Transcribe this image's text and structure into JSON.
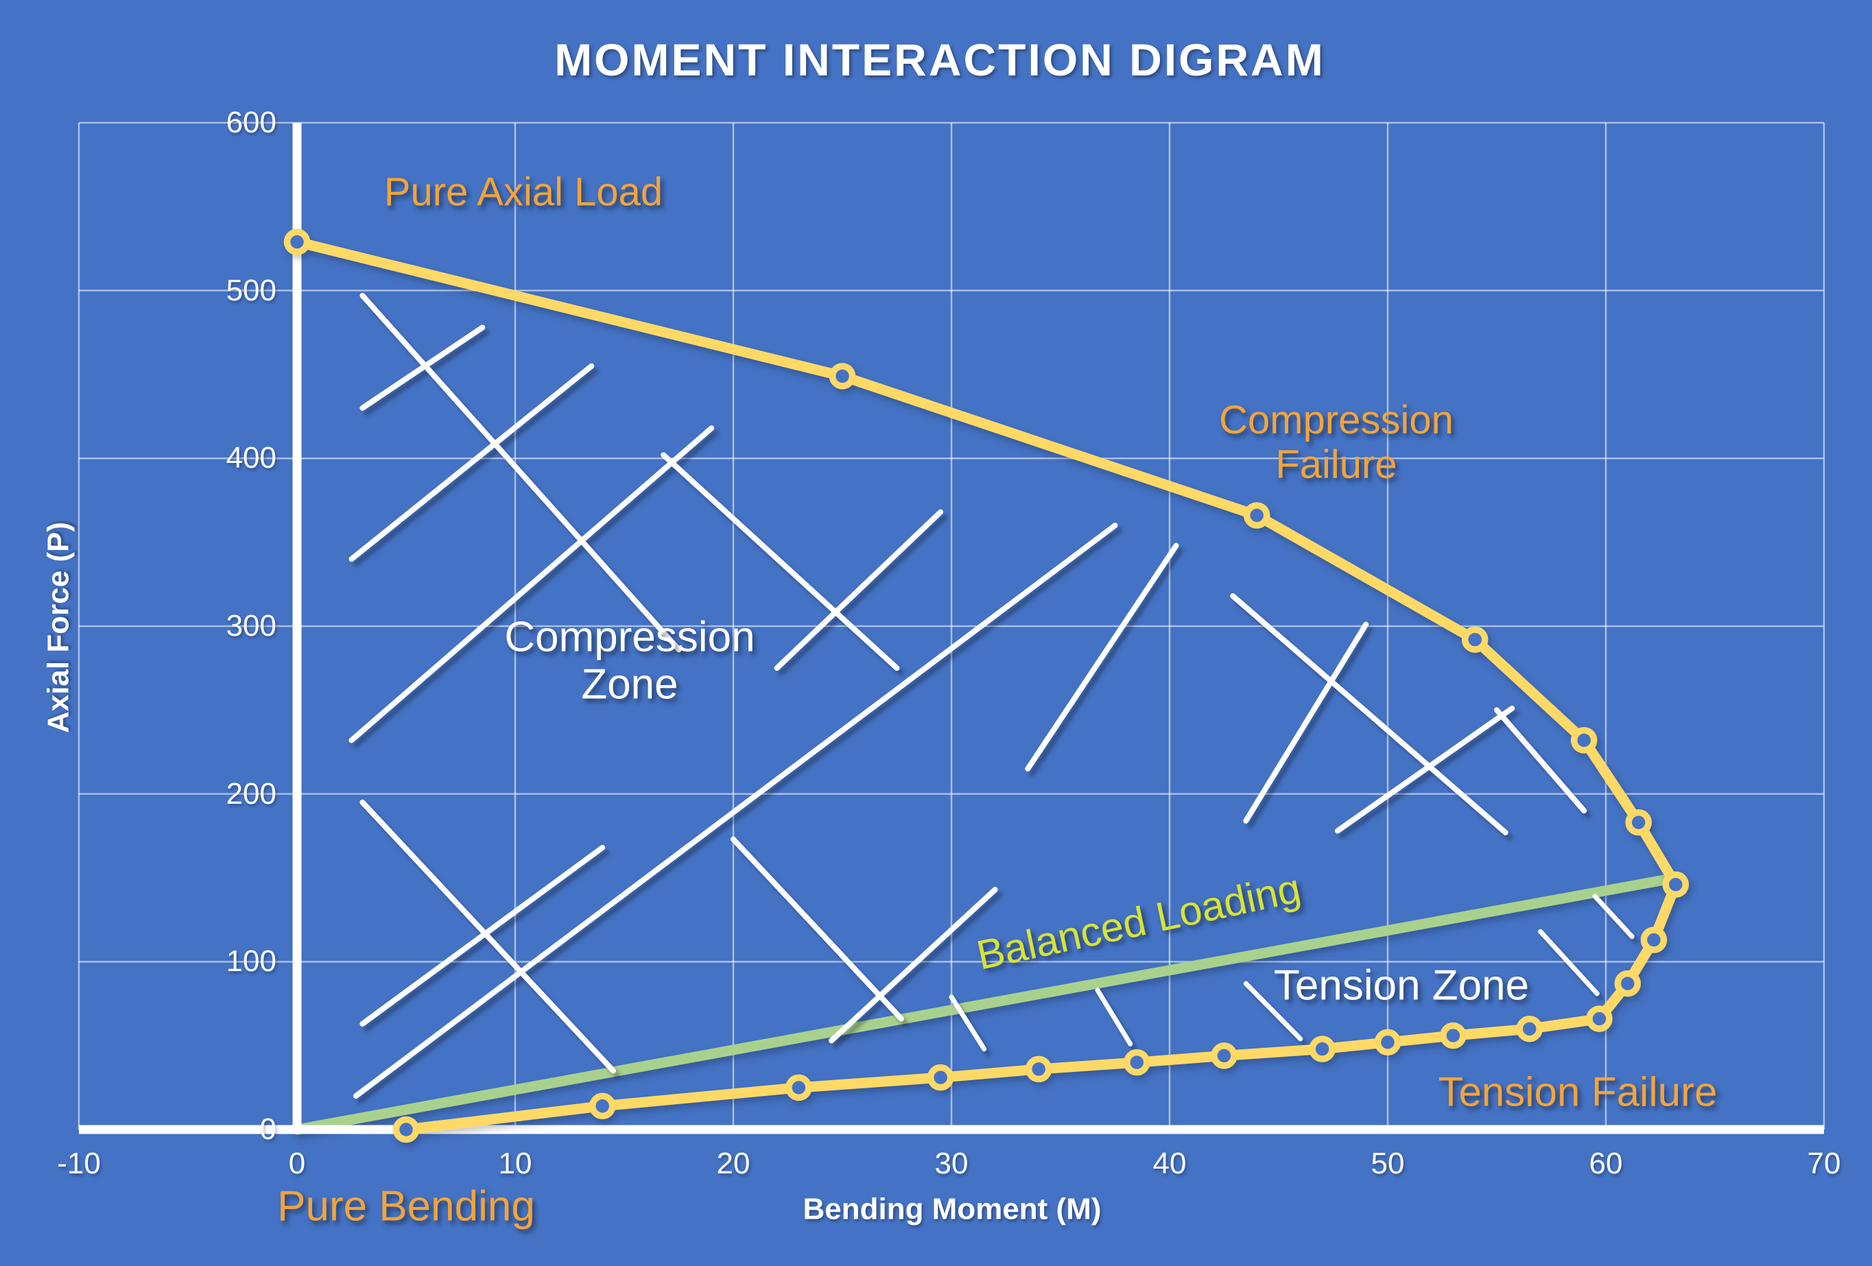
{
  "chart_data": {
    "type": "line",
    "title": "MOMENT INTERACTION DIGRAM",
    "xlabel": "Bending Moment (M)",
    "ylabel": "Axial Force (P)",
    "xlim": [
      -10,
      70
    ],
    "ylim": [
      0,
      600
    ],
    "x_ticks": [
      -10,
      0,
      10,
      20,
      30,
      40,
      50,
      60,
      70
    ],
    "y_ticks": [
      0,
      100,
      200,
      300,
      400,
      500,
      600
    ],
    "grid": true,
    "legend": "none",
    "series": [
      {
        "name": "interaction-curve",
        "color": "#FFD966",
        "marker": "circle",
        "points": [
          [
            0,
            529
          ],
          [
            25,
            449
          ],
          [
            44,
            366
          ],
          [
            54,
            292
          ],
          [
            59,
            232
          ],
          [
            61.5,
            183
          ],
          [
            63.2,
            146
          ],
          [
            62.2,
            113
          ],
          [
            61,
            87
          ],
          [
            59.7,
            66
          ],
          [
            56.5,
            60
          ],
          [
            53,
            56
          ],
          [
            50,
            52
          ],
          [
            47,
            48
          ],
          [
            42.5,
            44
          ],
          [
            38.5,
            40
          ],
          [
            34,
            36
          ],
          [
            29.5,
            31
          ],
          [
            23,
            25
          ],
          [
            14,
            14
          ],
          [
            5,
            0
          ]
        ]
      },
      {
        "name": "balanced-loading-line",
        "color": "#A9D18E",
        "marker": "none",
        "points": [
          [
            0,
            0
          ],
          [
            63.2,
            150
          ]
        ]
      }
    ],
    "hatch_segments": {
      "compression": [
        [
          3,
          497,
          17.5,
          286
        ],
        [
          3,
          430,
          8.5,
          478
        ],
        [
          2.5,
          340,
          13.5,
          455
        ],
        [
          2.5,
          232,
          19,
          418
        ],
        [
          3,
          195,
          14.5,
          35
        ],
        [
          3,
          63,
          14,
          168
        ],
        [
          2.7,
          20,
          37.5,
          360
        ],
        [
          16.8,
          402,
          27.5,
          275
        ],
        [
          22,
          275,
          29.5,
          368
        ],
        [
          20,
          173,
          27.7,
          66
        ],
        [
          24.5,
          53,
          32,
          143
        ],
        [
          33.5,
          215,
          40.3,
          348
        ],
        [
          42.9,
          318,
          55.4,
          177
        ],
        [
          43.5,
          184,
          49,
          301
        ],
        [
          47.7,
          178,
          55.7,
          251
        ],
        [
          55,
          250,
          59,
          190
        ]
      ],
      "tension": [
        [
          30,
          79,
          31.5,
          48
        ],
        [
          36.7,
          83,
          38.2,
          51
        ],
        [
          43.5,
          87,
          46,
          54
        ],
        [
          57,
          118,
          59.6,
          81
        ],
        [
          59.5,
          139,
          61.2,
          115
        ]
      ]
    },
    "annotations": [
      {
        "id": "pure-axial-load",
        "lines": [
          "Pure Axial Load"
        ],
        "color": "#F2A43B",
        "x": 763,
        "y": 281,
        "size": 58,
        "rotate": 0,
        "bold": false
      },
      {
        "id": "compression-failure",
        "lines": [
          "Compression",
          "Failure"
        ],
        "color": "#F2A43B",
        "x": 1948,
        "y": 646,
        "size": 58,
        "rotate": 0,
        "bold": false
      },
      {
        "id": "compression-zone",
        "lines": [
          "Compression",
          "Zone"
        ],
        "color": "#FFFFFF",
        "x": 918,
        "y": 964,
        "size": 62,
        "rotate": 0,
        "bold": false
      },
      {
        "id": "balanced-loading",
        "lines": [
          "Balanced Loading"
        ],
        "color": "#D6E335",
        "x": 1660,
        "y": 1344,
        "size": 60,
        "rotate": -12,
        "bold": false
      },
      {
        "id": "tension-zone",
        "lines": [
          "Tension Zone"
        ],
        "color": "#FFFFFF",
        "x": 2043,
        "y": 1437,
        "size": 62,
        "rotate": 0,
        "bold": false
      },
      {
        "id": "tension-failure",
        "lines": [
          "Tension Failure"
        ],
        "color": "#F2A43B",
        "x": 2300,
        "y": 1592,
        "size": 60,
        "rotate": 0,
        "bold": false
      },
      {
        "id": "pure-bending",
        "lines": [
          "Pure Bending"
        ],
        "color": "#F2A43B",
        "x": 592,
        "y": 1759,
        "size": 62,
        "rotate": 0,
        "bold": false
      }
    ],
    "colors": {
      "background": "#4472C4",
      "gridline": "rgba(255,255,255,0.55)",
      "axis_line": "#FFFFFF",
      "curve": "#FFD966",
      "marker_fill": "#4472C4",
      "balanced_line": "#A9D18E",
      "hatch": "#FFFFFF",
      "tick_text": "#FFFFFF",
      "title_text": "#FFFFFF"
    }
  }
}
